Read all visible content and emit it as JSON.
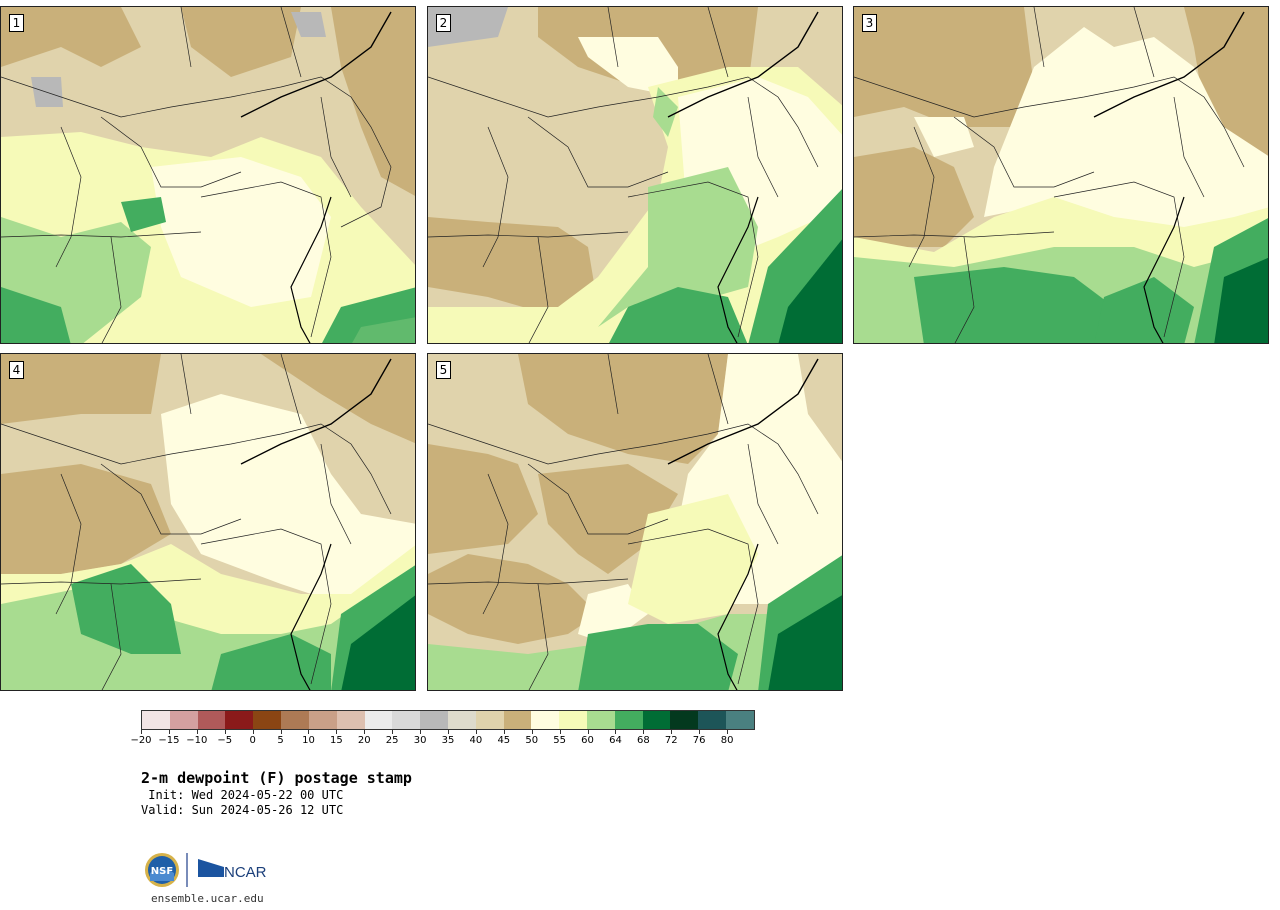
{
  "panels": [
    {
      "label": "1"
    },
    {
      "label": "2"
    },
    {
      "label": "3"
    },
    {
      "label": "4"
    },
    {
      "label": "5"
    }
  ],
  "colorbar": {
    "colors": [
      "#f2e4e4",
      "#d4a0a0",
      "#b05a5a",
      "#8b1a1a",
      "#8b4513",
      "#ad7a55",
      "#c9a088",
      "#ddc0b0",
      "#ececec",
      "#dadada",
      "#b8b8b8",
      "#dedbcc",
      "#e0d3ac",
      "#c9b07a",
      "#fffde0",
      "#f6fab8",
      "#a8dc90",
      "#43ad5f",
      "#006d35",
      "#03391e",
      "#1d5558",
      "#4a8080"
    ],
    "tick_labels": [
      "−20",
      "−15",
      "−10",
      "−5",
      "0",
      "5",
      "10",
      "15",
      "20",
      "25",
      "30",
      "35",
      "40",
      "45",
      "50",
      "55",
      "60",
      "64",
      "68",
      "72",
      "76",
      "80"
    ]
  },
  "title": "2-m dewpoint (F) postage stamp",
  "init_line": " Init: Wed 2024-05-22 00 UTC",
  "valid_line": "Valid: Sun 2024-05-26 12 UTC",
  "logos": {
    "nsf": "NSF",
    "ncar": "NCAR"
  },
  "footer_url": "ensemble.ucar.edu",
  "palette": {
    "grey": "#b8b8b8",
    "light_tan": "#e0d3ac",
    "tan": "#c9b07a",
    "cream": "#fffde0",
    "yellow": "#f6fab8",
    "light_green": "#a8dc90",
    "green": "#43ad5f",
    "dark_green": "#006d35"
  }
}
